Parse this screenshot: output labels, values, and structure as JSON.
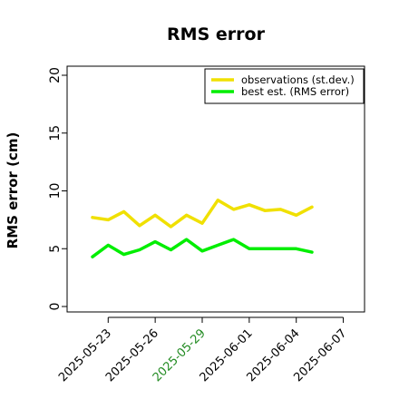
{
  "chart_data": {
    "type": "line",
    "title": "RMS error",
    "xlabel": "",
    "ylabel": "RMS error (cm)",
    "ylim": [
      0,
      20
    ],
    "yticks": [
      0,
      5,
      10,
      15,
      20
    ],
    "xrange": [
      "2025-05-21",
      "2025-06-08"
    ],
    "xticks": [
      {
        "date": "2025-05-23",
        "label": "2025-05-23",
        "color": "#000000"
      },
      {
        "date": "2025-05-26",
        "label": "2025-05-26",
        "color": "#000000"
      },
      {
        "date": "2025-05-29",
        "label": "2025-05-29",
        "color": "#228B22"
      },
      {
        "date": "2025-06-01",
        "label": "2025-06-01",
        "color": "#000000"
      },
      {
        "date": "2025-06-04",
        "label": "2025-06-04",
        "color": "#000000"
      },
      {
        "date": "2025-06-07",
        "label": "2025-06-07",
        "color": "#000000"
      }
    ],
    "x": [
      "2025-05-22",
      "2025-05-23",
      "2025-05-24",
      "2025-05-25",
      "2025-05-26",
      "2025-05-27",
      "2025-05-28",
      "2025-05-29",
      "2025-05-30",
      "2025-05-31",
      "2025-06-01",
      "2025-06-02",
      "2025-06-03",
      "2025-06-04",
      "2025-06-05",
      "2025-06-06"
    ],
    "series": [
      {
        "name": "observations (st.dev.)",
        "color": "#F0E000",
        "values": [
          7.7,
          7.5,
          8.2,
          7.0,
          7.9,
          6.9,
          7.9,
          7.2,
          9.2,
          8.4,
          8.8,
          8.3,
          8.4,
          7.9,
          8.6,
          null
        ]
      },
      {
        "name": "best est. (RMS error)",
        "color": "#00EE00",
        "values": [
          4.3,
          5.3,
          4.5,
          4.9,
          5.6,
          4.9,
          5.8,
          4.8,
          5.3,
          5.8,
          5.0,
          5.0,
          5.0,
          5.0,
          4.7,
          null
        ]
      }
    ],
    "legend_position": "top-right",
    "grid": false
  }
}
